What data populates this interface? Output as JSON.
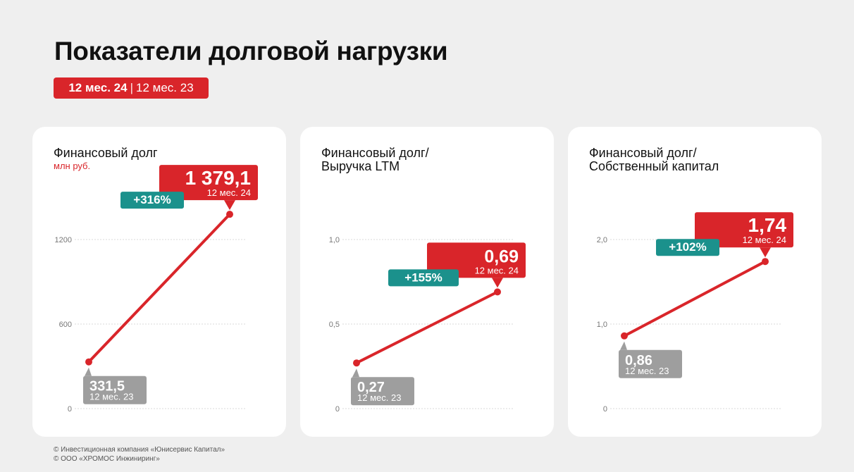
{
  "title": "Показатели долговой нагрузки",
  "period": {
    "current": "12 мес. 24",
    "separator": "|",
    "previous": "12 мес. 23"
  },
  "colors": {
    "accent": "#d9252a",
    "growth": "#1b918c",
    "previous": "#9e9e9e",
    "grid": "#d8d8d8"
  },
  "cards": [
    {
      "title_lines": [
        "Финансовый долг"
      ],
      "unit": "млн руб."
    },
    {
      "title_lines": [
        "Финансовый долг/",
        "Выручка LTM"
      ],
      "unit": ""
    },
    {
      "title_lines": [
        "Финансовый долг/",
        "Собственный капитал"
      ],
      "unit": ""
    }
  ],
  "chart_data": [
    {
      "type": "line",
      "title": "Финансовый долг",
      "unit": "млн руб.",
      "ylim": [
        0,
        1200
      ],
      "yticks": [
        0,
        600,
        1200
      ],
      "ytick_labels": [
        "0",
        "600",
        "1200"
      ],
      "grid": true,
      "points": [
        {
          "period": "12 мес. 23",
          "value": 331.5,
          "label": "331,5"
        },
        {
          "period": "12 мес. 24",
          "value": 1379.1,
          "label": "1 379,1"
        }
      ],
      "growth": "+316%"
    },
    {
      "type": "line",
      "title": "Финансовый долг/Выручка LTM",
      "ylim": [
        0,
        1.0
      ],
      "yticks": [
        0,
        0.5,
        1.0
      ],
      "ytick_labels": [
        "0",
        "0,5",
        "1,0"
      ],
      "grid": true,
      "points": [
        {
          "period": "12 мес. 23",
          "value": 0.27,
          "label": "0,27"
        },
        {
          "period": "12 мес. 24",
          "value": 0.69,
          "label": "0,69"
        }
      ],
      "growth": "+155%"
    },
    {
      "type": "line",
      "title": "Финансовый долг/Собственный капитал",
      "ylim": [
        0,
        2.0
      ],
      "yticks": [
        0,
        1.0,
        2.0
      ],
      "ytick_labels": [
        "0",
        "1,0",
        "2,0"
      ],
      "grid": true,
      "points": [
        {
          "period": "12 мес. 23",
          "value": 0.86,
          "label": "0,86"
        },
        {
          "period": "12 мес. 24",
          "value": 1.74,
          "label": "1,74"
        }
      ],
      "growth": "+102%"
    }
  ],
  "footer": [
    "© Инвестиционная компания «Юнисервис Капитал»",
    "© ООО «ХРОМОС Инжиниринг»"
  ]
}
